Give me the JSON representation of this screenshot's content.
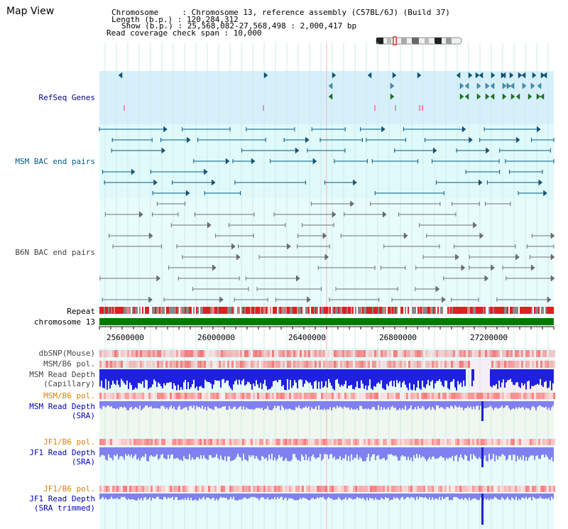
{
  "page": {
    "title": "Map View"
  },
  "header": {
    "chromosome_label": "Chromosome     : Chromosome 13, reference assembly (C57BL/6J) (Build 37)",
    "length_label": "Length (b.p.) : 120,284,312",
    "show_label": "Show (b.p.) : 25,568,082-27,568,498 : 2,000,417 bp",
    "coverage_label": "Read coverage check span : 10,000"
  },
  "tracks": {
    "refseq": "RefSeq Genes",
    "msm_bac": "MSM BAC end pairs",
    "b6n_bac": "B6N BAC end pairs",
    "repeat": "Repeat",
    "chromosome": "chromosome 13",
    "dbsnp": "dbSNP(Mouse)",
    "msm_b6_pol_1": "MSM/B6 pol.",
    "msm_depth_cap_1": "MSM Read Depth",
    "msm_depth_cap_2": "(Capillary)",
    "msm_b6_pol_2": "MSM/B6 pol.",
    "msm_depth_sra_1": "MSM Read Depth",
    "msm_depth_sra_2": "(SRA)",
    "jf1_b6_pol_1": "JF1/B6 pol.",
    "jf1_depth_sra_1": "JF1 Read Depth",
    "jf1_depth_sra_2": "(SRA)",
    "jf1_b6_pol_2": "JF1/B6 pol.",
    "jf1_depth_trim_1": "JF1 Read Depth",
    "jf1_depth_trim_2": "(SRA trimmed)"
  },
  "axis": {
    "ticks": [
      "25600000",
      "26000000",
      "26400000",
      "26800000",
      "27200000"
    ]
  },
  "colors": {
    "refseq_bg": "#d5f0fa",
    "bac_bg": "#e0fafa",
    "light_bg": "#e8fcfc",
    "chromosome_bar": "#007a00",
    "repeat_red": "#e02020",
    "depth_blue": "#2020e0",
    "depth_light": "#8080f0",
    "teal_feature": "#005a87",
    "gray_feature": "#707070"
  }
}
